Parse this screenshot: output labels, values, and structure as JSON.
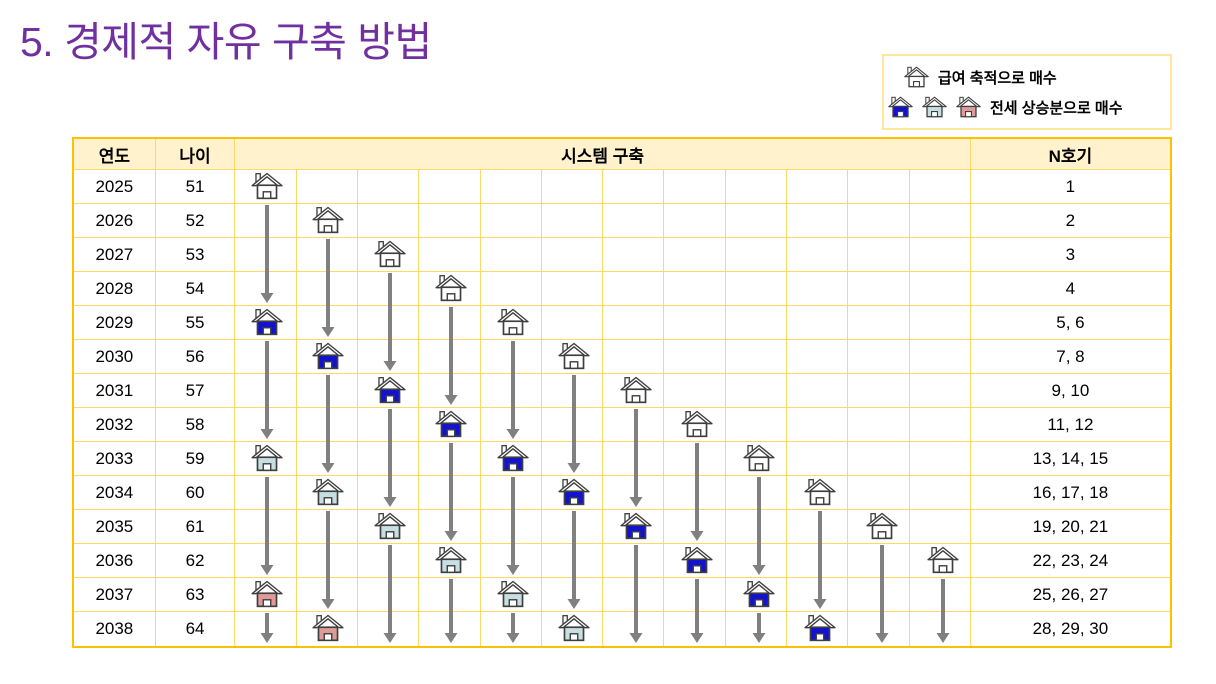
{
  "title": "5. 경제적 자유 구축 방법",
  "legend": {
    "items": [
      {
        "icons": [
          "white"
        ],
        "label": "급여 축적으로 매수"
      },
      {
        "icons": [
          "blue",
          "teal",
          "red"
        ],
        "label": "전세 상승분으로 매수"
      }
    ]
  },
  "colors": {
    "title": "#7030A0",
    "table_border_outer": "#FFC000",
    "table_border_inner": "#FFD866",
    "header_bg": "#FFF2CC",
    "legend_border": "#FFE699",
    "arrow": "#808080",
    "house_outline": "#3F3F3F",
    "house_fills": {
      "white": "#FFFFFF",
      "blue": "#1212D2",
      "teal": "#C7DFE2",
      "red": "#DE9B97"
    }
  },
  "table": {
    "headers": {
      "year": "연도",
      "age": "나이",
      "system": "시스템 구축",
      "unit": "N호기"
    },
    "system_columns": 12,
    "rows": [
      {
        "year": "2025",
        "age": "51",
        "unit": "1"
      },
      {
        "year": "2026",
        "age": "52",
        "unit": "2"
      },
      {
        "year": "2027",
        "age": "53",
        "unit": "3"
      },
      {
        "year": "2028",
        "age": "54",
        "unit": "4"
      },
      {
        "year": "2029",
        "age": "55",
        "unit": "5, 6"
      },
      {
        "year": "2030",
        "age": "56",
        "unit": "7, 8"
      },
      {
        "year": "2031",
        "age": "57",
        "unit": "9, 10"
      },
      {
        "year": "2032",
        "age": "58",
        "unit": "11, 12"
      },
      {
        "year": "2033",
        "age": "59",
        "unit": "13, 14, 15"
      },
      {
        "year": "2034",
        "age": "60",
        "unit": "16, 17, 18"
      },
      {
        "year": "2035",
        "age": "61",
        "unit": "19, 20, 21"
      },
      {
        "year": "2036",
        "age": "62",
        "unit": "22, 23, 24"
      },
      {
        "year": "2037",
        "age": "63",
        "unit": "25, 26, 27"
      },
      {
        "year": "2038",
        "age": "64",
        "unit": "28, 29, 30"
      }
    ],
    "houses": [
      {
        "col": 1,
        "year": 2025,
        "type": "white"
      },
      {
        "col": 1,
        "year": 2029,
        "type": "blue"
      },
      {
        "col": 1,
        "year": 2033,
        "type": "teal"
      },
      {
        "col": 1,
        "year": 2037,
        "type": "red"
      },
      {
        "col": 2,
        "year": 2026,
        "type": "white"
      },
      {
        "col": 2,
        "year": 2030,
        "type": "blue"
      },
      {
        "col": 2,
        "year": 2034,
        "type": "teal"
      },
      {
        "col": 2,
        "year": 2038,
        "type": "red"
      },
      {
        "col": 3,
        "year": 2027,
        "type": "white"
      },
      {
        "col": 3,
        "year": 2031,
        "type": "blue"
      },
      {
        "col": 3,
        "year": 2035,
        "type": "teal"
      },
      {
        "col": 4,
        "year": 2028,
        "type": "white"
      },
      {
        "col": 4,
        "year": 2032,
        "type": "blue"
      },
      {
        "col": 4,
        "year": 2036,
        "type": "teal"
      },
      {
        "col": 5,
        "year": 2029,
        "type": "white"
      },
      {
        "col": 5,
        "year": 2033,
        "type": "blue"
      },
      {
        "col": 5,
        "year": 2037,
        "type": "teal"
      },
      {
        "col": 6,
        "year": 2030,
        "type": "white"
      },
      {
        "col": 6,
        "year": 2034,
        "type": "blue"
      },
      {
        "col": 6,
        "year": 2038,
        "type": "teal"
      },
      {
        "col": 7,
        "year": 2031,
        "type": "white"
      },
      {
        "col": 7,
        "year": 2035,
        "type": "blue"
      },
      {
        "col": 8,
        "year": 2032,
        "type": "white"
      },
      {
        "col": 8,
        "year": 2036,
        "type": "blue"
      },
      {
        "col": 9,
        "year": 2033,
        "type": "white"
      },
      {
        "col": 9,
        "year": 2037,
        "type": "blue"
      },
      {
        "col": 10,
        "year": 2034,
        "type": "white"
      },
      {
        "col": 10,
        "year": 2038,
        "type": "blue"
      },
      {
        "col": 11,
        "year": 2035,
        "type": "white"
      },
      {
        "col": 12,
        "year": 2036,
        "type": "white"
      }
    ],
    "arrows": [
      {
        "col": 1,
        "from": 2026,
        "to": 2028
      },
      {
        "col": 1,
        "from": 2030,
        "to": 2032
      },
      {
        "col": 1,
        "from": 2034,
        "to": 2036
      },
      {
        "col": 1,
        "from": 2038,
        "to": 2038
      },
      {
        "col": 2,
        "from": 2027,
        "to": 2029
      },
      {
        "col": 2,
        "from": 2031,
        "to": 2033
      },
      {
        "col": 2,
        "from": 2035,
        "to": 2037
      },
      {
        "col": 3,
        "from": 2028,
        "to": 2030
      },
      {
        "col": 3,
        "from": 2032,
        "to": 2034
      },
      {
        "col": 3,
        "from": 2036,
        "to": 2038
      },
      {
        "col": 4,
        "from": 2029,
        "to": 2031
      },
      {
        "col": 4,
        "from": 2033,
        "to": 2035
      },
      {
        "col": 4,
        "from": 2037,
        "to": 2038
      },
      {
        "col": 5,
        "from": 2030,
        "to": 2032
      },
      {
        "col": 5,
        "from": 2034,
        "to": 2036
      },
      {
        "col": 5,
        "from": 2038,
        "to": 2038
      },
      {
        "col": 6,
        "from": 2031,
        "to": 2033
      },
      {
        "col": 6,
        "from": 2035,
        "to": 2037
      },
      {
        "col": 7,
        "from": 2032,
        "to": 2034
      },
      {
        "col": 7,
        "from": 2036,
        "to": 2038
      },
      {
        "col": 8,
        "from": 2033,
        "to": 2035
      },
      {
        "col": 8,
        "from": 2037,
        "to": 2038
      },
      {
        "col": 9,
        "from": 2034,
        "to": 2036
      },
      {
        "col": 9,
        "from": 2038,
        "to": 2038
      },
      {
        "col": 10,
        "from": 2035,
        "to": 2037
      },
      {
        "col": 11,
        "from": 2036,
        "to": 2038
      },
      {
        "col": 12,
        "from": 2037,
        "to": 2038
      }
    ]
  }
}
